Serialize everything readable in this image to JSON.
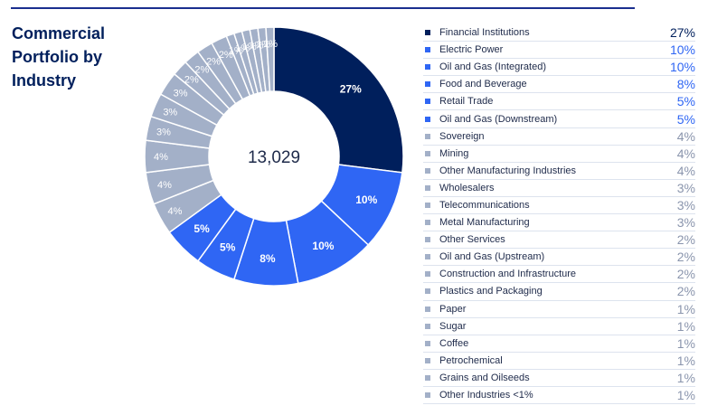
{
  "title": "Commercial Portfolio by Industry",
  "chart_data": {
    "type": "pie",
    "total": "13,029",
    "categories": [
      "Financial Institutions",
      "Electric Power",
      "Oil and Gas (Integrated)",
      "Food and Beverage",
      "Retail Trade",
      "Oil and Gas (Downstream)",
      "Sovereign",
      "Mining",
      "Other Manufacturing Industries",
      "Wholesalers",
      "Telecommunications",
      "Metal Manufacturing",
      "Other Services",
      "Oil and Gas (Upstream)",
      "Construction and Infrastructure",
      "Plastics and Packaging",
      "Paper",
      "Sugar",
      "Coffee",
      "Petrochemical",
      "Grains and Oilseeds",
      "Other Industries <1%"
    ],
    "values": [
      27,
      10,
      10,
      8,
      5,
      5,
      4,
      4,
      4,
      3,
      3,
      3,
      2,
      2,
      2,
      2,
      1,
      1,
      1,
      1,
      1,
      1
    ],
    "labels": [
      "27%",
      "10%",
      "10%",
      "8%",
      "5%",
      "5%",
      "4%",
      "4%",
      "4%",
      "3%",
      "3%",
      "3%",
      "2%",
      "2%",
      "2%",
      "2%",
      "1%",
      "1%",
      "1%",
      "1%",
      "1%",
      "1%"
    ],
    "colors": {
      "dark": "#001f5c",
      "blue": "#2f66f4",
      "grey": "#a3b0c8",
      "separator": "#ffffff"
    },
    "legend_position": "right"
  }
}
